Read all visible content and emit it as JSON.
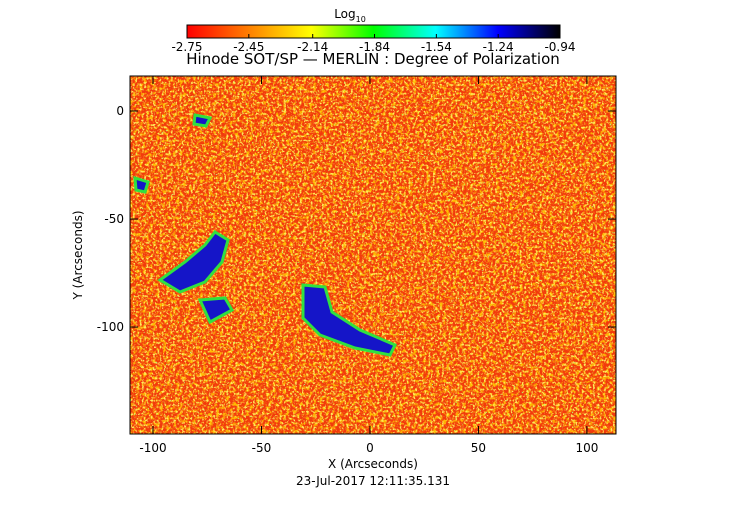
{
  "chart_data": {
    "type": "image",
    "title": "Hinode SOT/SP — MERLIN : Degree of Polarization",
    "x_label": "X (Arcseconds)",
    "y_label": "Y (Arcseconds)",
    "timestamp": "23-Jul-2017 12:11:35.131",
    "xlim": [
      -110.6,
      113.4
    ],
    "xticks": [
      -100,
      -50,
      0,
      50,
      100
    ],
    "ylim": [
      -149.5,
      16.2
    ],
    "yticks": [
      -100,
      -50,
      0
    ],
    "colorbar": {
      "label": "Log",
      "label_sub": "10",
      "lim": [
        -2.75,
        -0.94
      ],
      "ticks": [
        -2.75,
        -2.45,
        -2.14,
        -1.84,
        -1.54,
        -1.24,
        -0.94
      ],
      "colors": [
        "#ff0000",
        "#ff8000",
        "#ffff00",
        "#00ff00",
        "#00ffff",
        "#0000ff",
        "#000000"
      ]
    }
  }
}
